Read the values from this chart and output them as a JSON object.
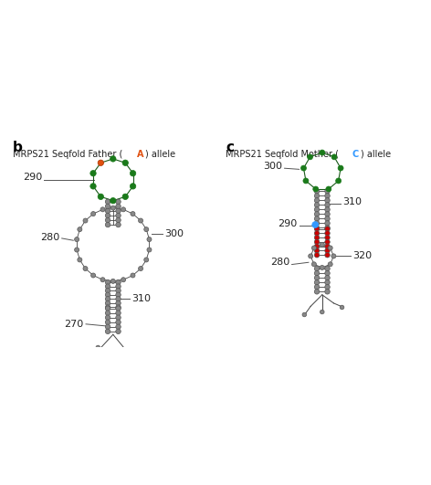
{
  "title_left_pre": "MRPS21 Seqfold Father (",
  "title_left_letter": "A",
  "title_left_post": ") allele",
  "title_right_pre": "MRPS21 Seqfold Mother (",
  "title_right_letter": "C",
  "title_right_post": ") allele",
  "label_b": "b",
  "label_c": "c",
  "bg_color": "#ffffff",
  "node_color": "#888888",
  "node_edge": "#555555",
  "green_color": "#1a7a1a",
  "red_color": "#cc0000",
  "blue_color": "#3399ff",
  "orange_color": "#e05010",
  "text_color": "#222222",
  "label_fontsize": 8,
  "title_fontsize": 7.0
}
